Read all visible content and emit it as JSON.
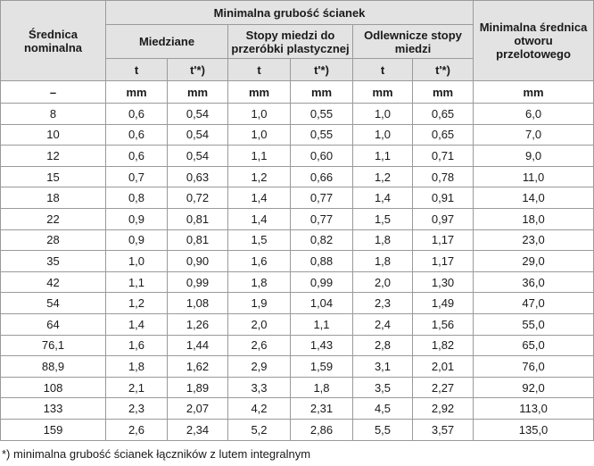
{
  "table": {
    "header": {
      "diameter": "Średnica nominalna",
      "group": "Minimalna grubość ścianek",
      "subgroups": [
        "Miedziane",
        "Stopy miedzi do przeróbki plastycznej",
        "Odlewnicze stopy miedzi"
      ],
      "hole": "Minimalna średnica otworu przelotowego",
      "sub": [
        "t",
        "t'*)",
        "t",
        "t'*)",
        "t",
        "t'*)"
      ]
    },
    "units": [
      "–",
      "mm",
      "mm",
      "mm",
      "mm",
      "mm",
      "mm",
      "mm"
    ],
    "rows": [
      [
        "8",
        "0,6",
        "0,54",
        "1,0",
        "0,55",
        "1,0",
        "0,65",
        "6,0"
      ],
      [
        "10",
        "0,6",
        "0,54",
        "1,0",
        "0,55",
        "1,0",
        "0,65",
        "7,0"
      ],
      [
        "12",
        "0,6",
        "0,54",
        "1,1",
        "0,60",
        "1,1",
        "0,71",
        "9,0"
      ],
      [
        "15",
        "0,7",
        "0,63",
        "1,2",
        "0,66",
        "1,2",
        "0,78",
        "11,0"
      ],
      [
        "18",
        "0,8",
        "0,72",
        "1,4",
        "0,77",
        "1,4",
        "0,91",
        "14,0"
      ],
      [
        "22",
        "0,9",
        "0,81",
        "1,4",
        "0,77",
        "1,5",
        "0,97",
        "18,0"
      ],
      [
        "28",
        "0,9",
        "0,81",
        "1,5",
        "0,82",
        "1,8",
        "1,17",
        "23,0"
      ],
      [
        "35",
        "1,0",
        "0,90",
        "1,6",
        "0,88",
        "1,8",
        "1,17",
        "29,0"
      ],
      [
        "42",
        "1,1",
        "0,99",
        "1,8",
        "0,99",
        "2,0",
        "1,30",
        "36,0"
      ],
      [
        "54",
        "1,2",
        "1,08",
        "1,9",
        "1,04",
        "2,3",
        "1,49",
        "47,0"
      ],
      [
        "64",
        "1,4",
        "1,26",
        "2,0",
        "1,1",
        "2,4",
        "1,56",
        "55,0"
      ],
      [
        "76,1",
        "1,6",
        "1,44",
        "2,6",
        "1,43",
        "2,8",
        "1,82",
        "65,0"
      ],
      [
        "88,9",
        "1,8",
        "1,62",
        "2,9",
        "1,59",
        "3,1",
        "2,01",
        "76,0"
      ],
      [
        "108",
        "2,1",
        "1,89",
        "3,3",
        "1,8",
        "3,5",
        "2,27",
        "92,0"
      ],
      [
        "133",
        "2,3",
        "2,07",
        "4,2",
        "2,31",
        "4,5",
        "2,92",
        "113,0"
      ],
      [
        "159",
        "2,6",
        "2,34",
        "5,2",
        "2,86",
        "5,5",
        "3,57",
        "135,0"
      ]
    ],
    "footnote": "*) minimalna grubość ścianek łączników z lutem integralnym"
  }
}
